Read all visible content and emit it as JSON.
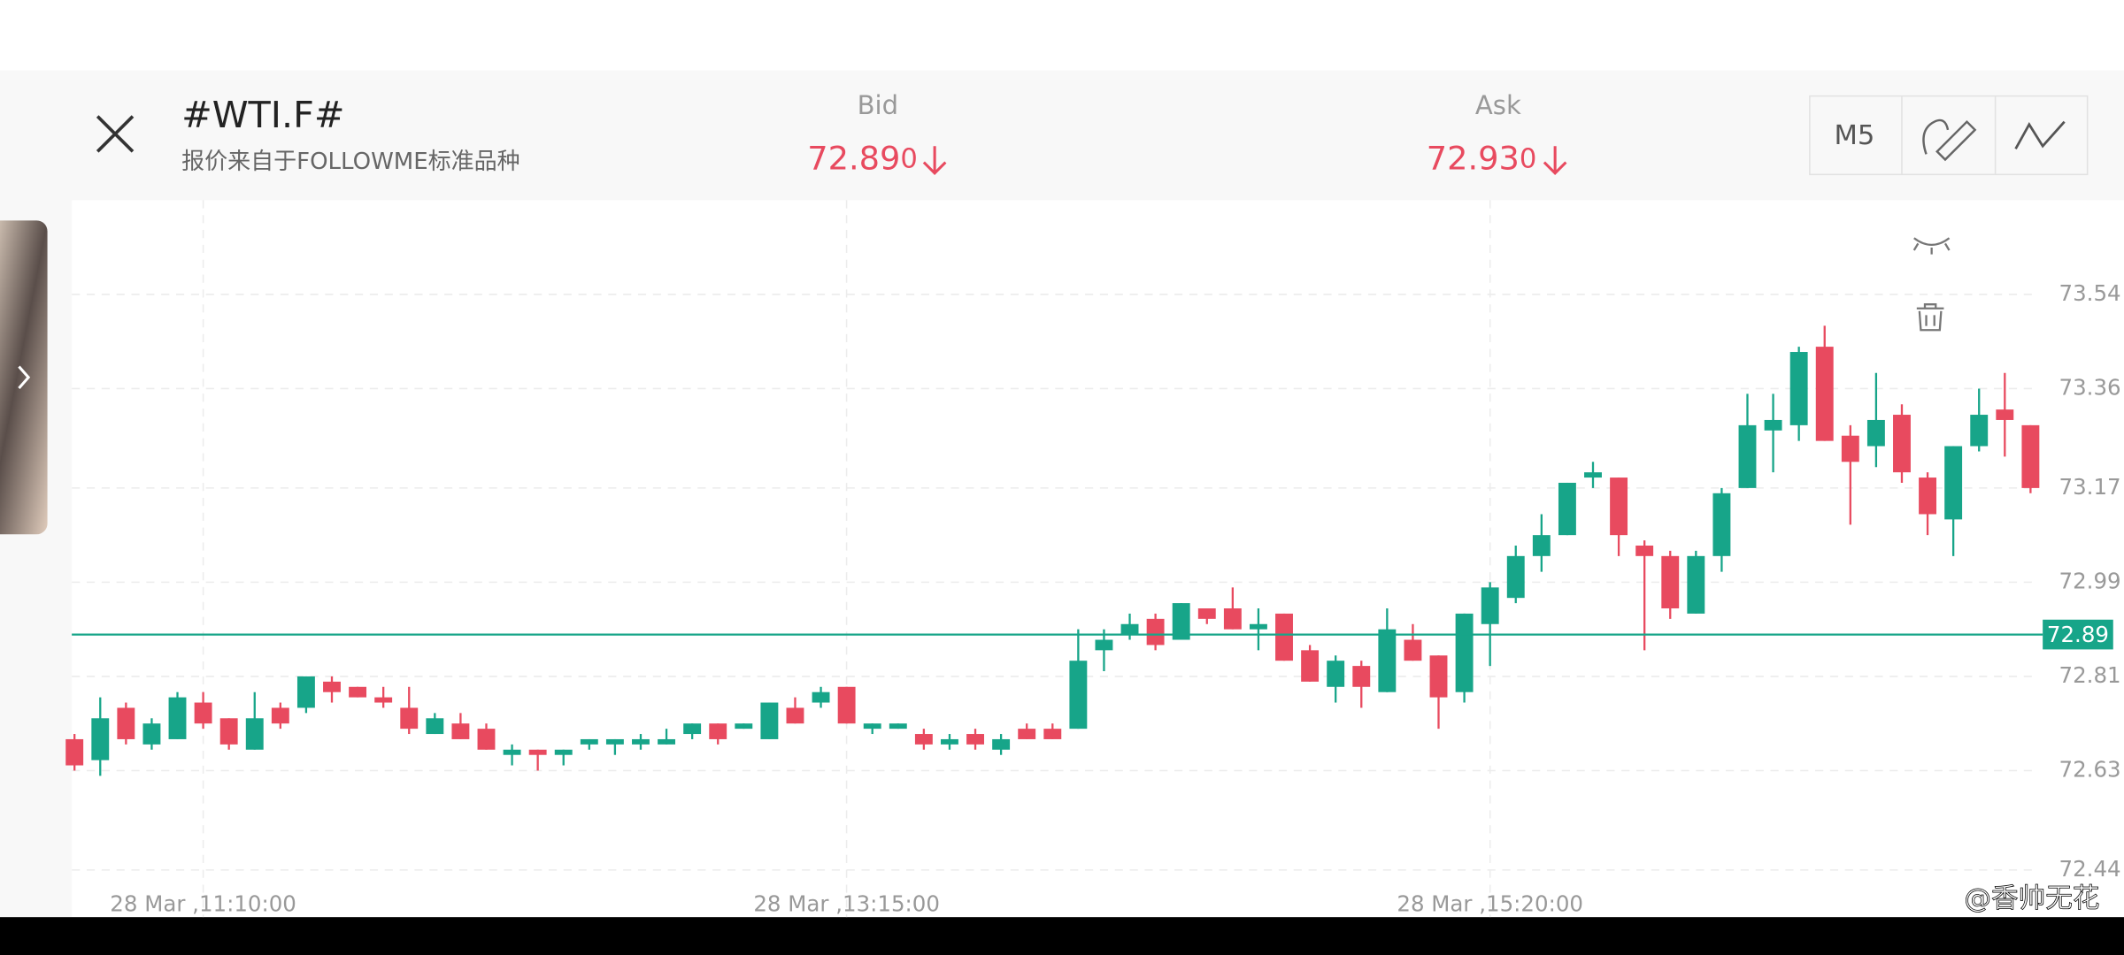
{
  "header": {
    "symbol": "#WTI.F#",
    "source": "报价来自于FOLLOWME标准品种",
    "bid": {
      "label": "Bid",
      "main": "72.89",
      "tail": "0"
    },
    "ask": {
      "label": "Ask",
      "main": "72.93",
      "tail": "0"
    },
    "timeframe": "M5"
  },
  "watermark": "@香帅无花",
  "chart_data": {
    "type": "candlestick",
    "categories": [
      null,
      null,
      null,
      null,
      null,
      "28 Mar ,11:10:00",
      null,
      null,
      null,
      null,
      null,
      null,
      null,
      null,
      null,
      null,
      null,
      null,
      null,
      null,
      null,
      null,
      null,
      null,
      null,
      null,
      null,
      null,
      null,
      null,
      "28 Mar ,13:15:00",
      null,
      null,
      null,
      null,
      null,
      null,
      null,
      null,
      null,
      null,
      null,
      null,
      null,
      null,
      null,
      null,
      null,
      null,
      null,
      null,
      null,
      null,
      null,
      null,
      "28 Mar ,15:20:00",
      null,
      null,
      null,
      null,
      null,
      null,
      null,
      null,
      null,
      null,
      null,
      null,
      null,
      null,
      null,
      null,
      null,
      null,
      null,
      null,
      null
    ],
    "ohlc": [
      [
        72.69,
        72.7,
        72.63,
        72.64
      ],
      [
        72.65,
        72.77,
        72.62,
        72.73
      ],
      [
        72.75,
        72.76,
        72.68,
        72.69
      ],
      [
        72.68,
        72.73,
        72.67,
        72.72
      ],
      [
        72.69,
        72.78,
        72.69,
        72.77
      ],
      [
        72.76,
        72.78,
        72.71,
        72.72
      ],
      [
        72.73,
        72.73,
        72.67,
        72.68
      ],
      [
        72.67,
        72.78,
        72.67,
        72.73
      ],
      [
        72.75,
        72.76,
        72.71,
        72.72
      ],
      [
        72.75,
        72.81,
        72.74,
        72.81
      ],
      [
        72.8,
        72.81,
        72.76,
        72.78
      ],
      [
        72.79,
        72.79,
        72.77,
        72.77
      ],
      [
        72.77,
        72.79,
        72.75,
        72.76
      ],
      [
        72.75,
        72.79,
        72.7,
        72.71
      ],
      [
        72.7,
        72.74,
        72.7,
        72.73
      ],
      [
        72.72,
        72.74,
        72.69,
        72.69
      ],
      [
        72.71,
        72.72,
        72.67,
        72.67
      ],
      [
        72.66,
        72.68,
        72.64,
        72.67
      ],
      [
        72.67,
        72.67,
        72.63,
        72.66
      ],
      [
        72.66,
        72.67,
        72.64,
        72.67
      ],
      [
        72.68,
        72.69,
        72.67,
        72.69
      ],
      [
        72.68,
        72.69,
        72.66,
        72.69
      ],
      [
        72.68,
        72.7,
        72.67,
        72.69
      ],
      [
        72.68,
        72.71,
        72.68,
        72.69
      ],
      [
        72.7,
        72.72,
        72.69,
        72.72
      ],
      [
        72.72,
        72.72,
        72.68,
        72.69
      ],
      [
        72.71,
        72.72,
        72.71,
        72.72
      ],
      [
        72.69,
        72.76,
        72.69,
        72.76
      ],
      [
        72.75,
        72.77,
        72.72,
        72.72
      ],
      [
        72.76,
        72.79,
        72.75,
        72.78
      ],
      [
        72.79,
        72.79,
        72.72,
        72.72
      ],
      [
        72.71,
        72.72,
        72.7,
        72.72
      ],
      [
        72.71,
        72.72,
        72.71,
        72.72
      ],
      [
        72.7,
        72.71,
        72.67,
        72.68
      ],
      [
        72.68,
        72.7,
        72.67,
        72.69
      ],
      [
        72.7,
        72.71,
        72.67,
        72.68
      ],
      [
        72.67,
        72.7,
        72.66,
        72.69
      ],
      [
        72.71,
        72.72,
        72.69,
        72.69
      ],
      [
        72.71,
        72.72,
        72.69,
        72.69
      ],
      [
        72.71,
        72.9,
        72.71,
        72.84
      ],
      [
        72.86,
        72.9,
        72.82,
        72.88
      ],
      [
        72.89,
        72.93,
        72.88,
        72.91
      ],
      [
        72.92,
        72.93,
        72.86,
        72.87
      ],
      [
        72.88,
        72.95,
        72.88,
        72.95
      ],
      [
        72.94,
        72.94,
        72.91,
        72.92
      ],
      [
        72.94,
        72.98,
        72.9,
        72.9
      ],
      [
        72.9,
        72.94,
        72.86,
        72.91
      ],
      [
        72.93,
        72.93,
        72.84,
        72.84
      ],
      [
        72.86,
        72.87,
        72.8,
        72.8
      ],
      [
        72.79,
        72.85,
        72.76,
        72.84
      ],
      [
        72.83,
        72.84,
        72.75,
        72.79
      ],
      [
        72.78,
        72.94,
        72.78,
        72.9
      ],
      [
        72.88,
        72.91,
        72.84,
        72.84
      ],
      [
        72.85,
        72.85,
        72.71,
        72.77
      ],
      [
        72.78,
        72.93,
        72.76,
        72.93
      ],
      [
        72.91,
        72.99,
        72.83,
        72.98
      ],
      [
        72.96,
        73.06,
        72.95,
        73.04
      ],
      [
        73.04,
        73.12,
        73.01,
        73.08
      ],
      [
        73.08,
        73.18,
        73.08,
        73.18
      ],
      [
        73.19,
        73.22,
        73.17,
        73.2
      ],
      [
        73.19,
        73.19,
        73.04,
        73.08
      ],
      [
        73.06,
        73.07,
        72.86,
        73.04
      ],
      [
        73.04,
        73.05,
        72.92,
        72.94
      ],
      [
        72.93,
        73.05,
        72.93,
        73.04
      ],
      [
        73.04,
        73.17,
        73.01,
        73.16
      ],
      [
        73.17,
        73.35,
        73.17,
        73.29
      ],
      [
        73.28,
        73.35,
        73.2,
        73.3
      ],
      [
        73.29,
        73.44,
        73.26,
        73.43
      ],
      [
        73.44,
        73.48,
        73.26,
        73.26
      ],
      [
        73.27,
        73.29,
        73.1,
        73.22
      ],
      [
        73.25,
        73.39,
        73.21,
        73.3
      ],
      [
        73.31,
        73.33,
        73.18,
        73.2
      ],
      [
        73.19,
        73.2,
        73.08,
        73.12
      ],
      [
        73.11,
        73.25,
        73.04,
        73.25
      ],
      [
        73.25,
        73.36,
        73.24,
        73.31
      ],
      [
        73.32,
        73.39,
        73.23,
        73.3
      ],
      [
        73.29,
        73.29,
        73.16,
        73.17
      ]
    ],
    "up_color": "#17a589",
    "down_color": "#e84a5f",
    "current_price": 72.89,
    "current_price_color": "#17a589",
    "ylim": [
      72.35,
      73.72
    ],
    "yticks": [
      73.54,
      73.36,
      73.17,
      72.99,
      72.81,
      72.63,
      72.44
    ],
    "grid": true
  }
}
